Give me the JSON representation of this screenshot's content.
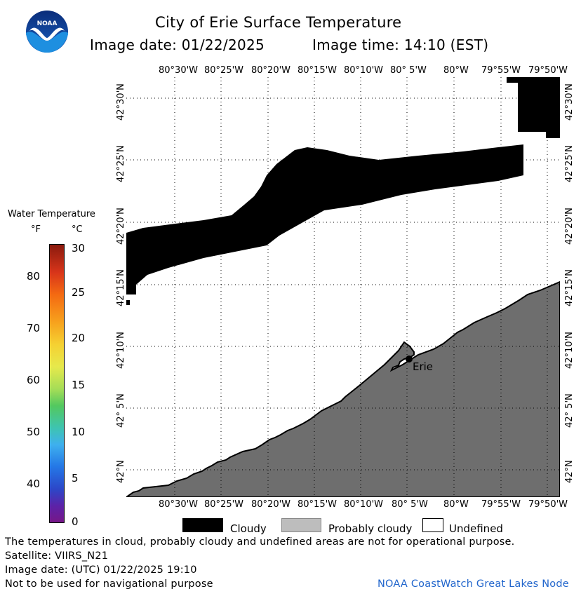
{
  "header": {
    "title": "City of Erie Surface Temperature",
    "image_date": "Image date: 01/22/2025",
    "image_time": "Image time: 14:10 (EST)",
    "logo_text": "NOAA"
  },
  "colorbar": {
    "title": "Water Temperature",
    "unit_f": "°F",
    "unit_c": "°C",
    "f_ticks": [
      "80",
      "70",
      "60",
      "50",
      "40"
    ],
    "c_ticks": [
      "30",
      "25",
      "20",
      "15",
      "10",
      "5",
      "0"
    ]
  },
  "map": {
    "lon_labels": [
      "80°30'W",
      "80°25'W",
      "80°20'W",
      "80°15'W",
      "80°10'W",
      "80° 5'W",
      "80°W",
      "79°55'W",
      "79°50'W"
    ],
    "top_lon_labels": [
      "80°30'W",
      "80°25'W",
      "80°20'W",
      "80°15'W",
      "80°10'W",
      "80° 5'W",
      "80°W",
      "79°55'W",
      "79°50'W"
    ],
    "lat_labels": [
      "42°30'N",
      "42°25'N",
      "42°20'N",
      "42°15'N",
      "42°10'N",
      "42° 5'N",
      "42°N"
    ],
    "city_label": "Erie",
    "colors": {
      "land": "#6e6e6e",
      "cloud": "#000000",
      "water": "#ffffff"
    }
  },
  "legend": {
    "cloudy": "Cloudy",
    "probably_cloudy": "Probably cloudy",
    "undefined": "Undefined"
  },
  "footer": {
    "disclaimer": "The temperatures in cloud, probably cloudy and undefined areas are not for operational purpose.",
    "satellite": "Satellite: VIIRS_N21",
    "utc_date": "Image date: (UTC) 01/22/2025  19:10",
    "nav_warning": "Not to be used for navigational purpose",
    "credit": "NOAA CoastWatch Great Lakes Node"
  }
}
